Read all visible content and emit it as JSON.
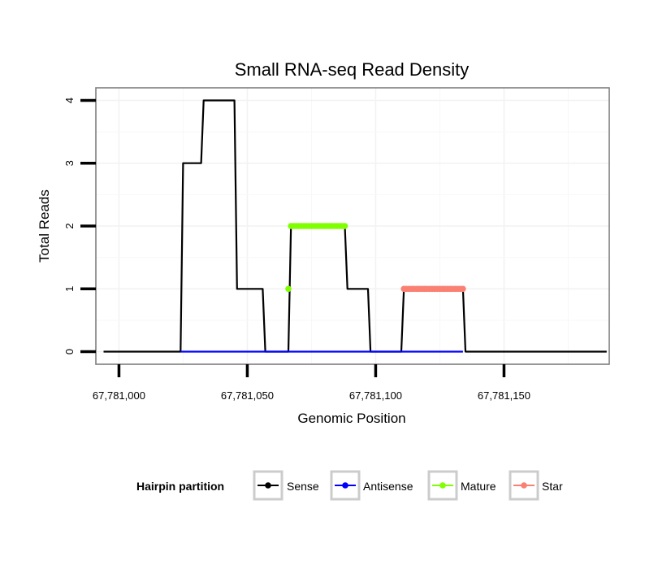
{
  "chart_data": {
    "type": "line",
    "title": "Small RNA-seq Read Density",
    "xlabel": "Genomic Position",
    "ylabel": "Total Reads",
    "xlim": [
      67780991,
      67781191
    ],
    "ylim": [
      -0.2,
      4.2
    ],
    "x_ticks": [
      67781000,
      67781050,
      67781100,
      67781150
    ],
    "x_tick_labels": [
      "67,781,000",
      "67,781,050",
      "67,781,100",
      "67,781,150"
    ],
    "y_ticks": [
      0,
      1,
      2,
      3,
      4
    ],
    "y_tick_labels": [
      "0",
      "1",
      "2",
      "3",
      "4"
    ],
    "grid": true,
    "legend": {
      "title": "Hairpin partition",
      "position": "bottom",
      "entries": [
        "Sense",
        "Antisense",
        "Mature",
        "Star"
      ]
    },
    "series": [
      {
        "name": "Sense",
        "color": "#000000",
        "style": "line",
        "x": [
          67780994,
          67781024,
          67781025,
          67781032,
          67781033,
          67781045,
          67781046,
          67781056,
          67781057,
          67781066,
          67781067,
          67781088,
          67781089,
          67781097,
          67781098,
          67781110,
          67781111,
          67781134,
          67781135,
          67781190
        ],
        "y": [
          0,
          0,
          3,
          3,
          4,
          4,
          1,
          1,
          0,
          0,
          2,
          2,
          1,
          1,
          0,
          0,
          1,
          1,
          0,
          0
        ]
      },
      {
        "name": "Antisense",
        "color": "#0000ff",
        "style": "line",
        "x": [
          67781024,
          67781134
        ],
        "y": [
          0,
          0
        ]
      },
      {
        "name": "Mature",
        "color": "#7fff00",
        "style": "points",
        "x": [
          67781066,
          67781067,
          67781068,
          67781069,
          67781070,
          67781071,
          67781072,
          67781073,
          67781074,
          67781075,
          67781076,
          67781077,
          67781078,
          67781079,
          67781080,
          67781081,
          67781082,
          67781083,
          67781084,
          67781085,
          67781086,
          67781087,
          67781088
        ],
        "y": [
          1,
          2,
          2,
          2,
          2,
          2,
          2,
          2,
          2,
          2,
          2,
          2,
          2,
          2,
          2,
          2,
          2,
          2,
          2,
          2,
          2,
          2,
          2
        ]
      },
      {
        "name": "Star",
        "color": "#fa8072",
        "style": "points",
        "x": [
          67781111,
          67781112,
          67781113,
          67781114,
          67781115,
          67781116,
          67781117,
          67781118,
          67781119,
          67781120,
          67781121,
          67781122,
          67781123,
          67781124,
          67781125,
          67781126,
          67781127,
          67781128,
          67781129,
          67781130,
          67781131,
          67781132,
          67781133,
          67781134
        ],
        "y": [
          1,
          1,
          1,
          1,
          1,
          1,
          1,
          1,
          1,
          1,
          1,
          1,
          1,
          1,
          1,
          1,
          1,
          1,
          1,
          1,
          1,
          1,
          1,
          1
        ]
      }
    ]
  }
}
